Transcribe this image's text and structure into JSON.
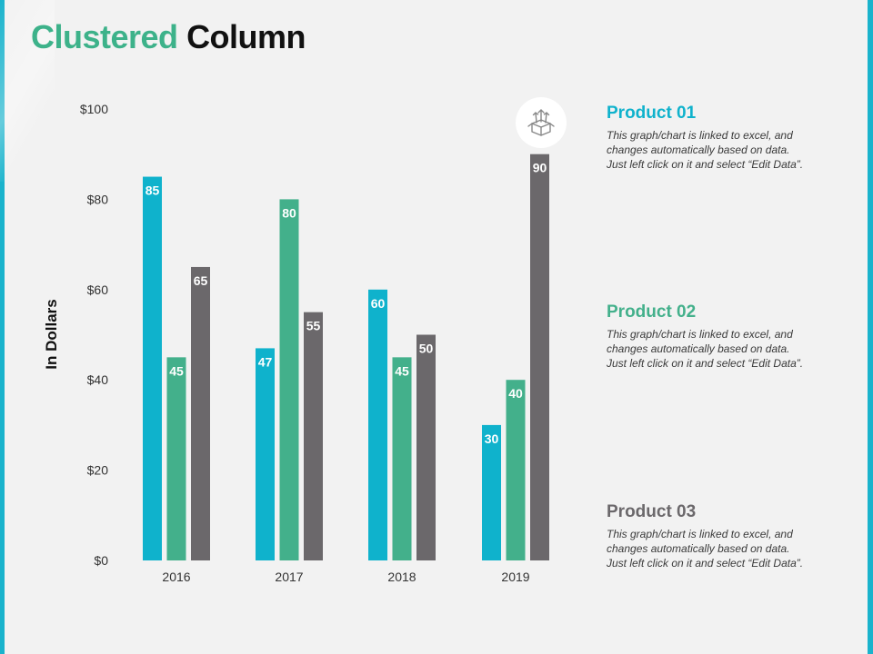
{
  "title": {
    "part1": "Clustered",
    "part2": "Column"
  },
  "colors": {
    "product1": "#0fb2cc",
    "product2": "#43b08b",
    "product3": "#6b686b",
    "accent": "#1ab3cc"
  },
  "chart_data": {
    "type": "bar",
    "categories": [
      "2016",
      "2017",
      "2018",
      "2019"
    ],
    "series": [
      {
        "name": "Product 01",
        "values": [
          85,
          47,
          60,
          30
        ]
      },
      {
        "name": "Product 02",
        "values": [
          45,
          80,
          45,
          40
        ]
      },
      {
        "name": "Product 03",
        "values": [
          65,
          55,
          50,
          90
        ]
      }
    ],
    "ylabel": "In Dollars",
    "ylim": [
      0,
      100
    ],
    "yticks": [
      0,
      20,
      40,
      60,
      80,
      100
    ],
    "ytick_labels": [
      "$0",
      "$20",
      "$40",
      "$60",
      "$80",
      "$100"
    ],
    "grid": false
  },
  "legend": [
    {
      "title": "Product 01",
      "desc": [
        "This graph/chart is linked to excel, and",
        "changes automatically based on data.",
        "Just left click on it and select “Edit Data”."
      ]
    },
    {
      "title": "Product 02",
      "desc": [
        "This graph/chart is linked to excel, and",
        "changes automatically based on data.",
        "Just left click on it and select “Edit Data”."
      ]
    },
    {
      "title": "Product 03",
      "desc": [
        "This graph/chart is linked to excel, and",
        "changes automatically based on data.",
        "Just left click on it and select “Edit Data”."
      ]
    }
  ],
  "icon": "box-growth-icon"
}
